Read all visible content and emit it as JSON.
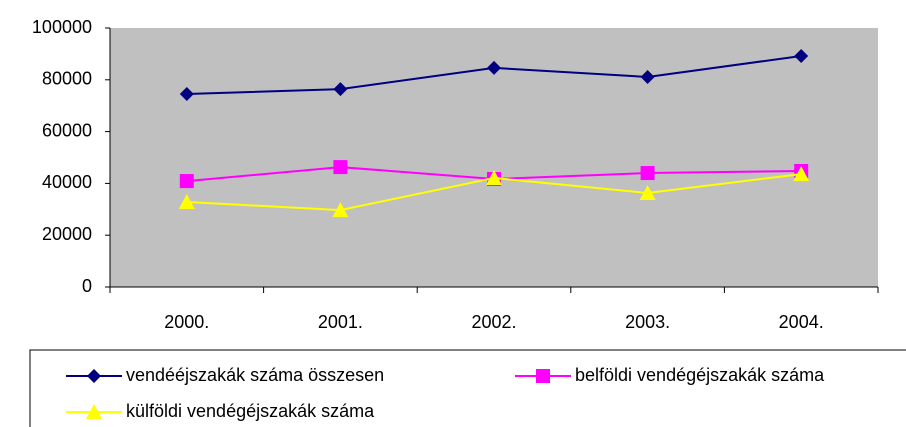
{
  "chart_data": {
    "type": "line",
    "categories": [
      "2000.",
      "2001.",
      "2002.",
      "2003.",
      "2004."
    ],
    "series": [
      {
        "name": "vendééjszakák száma összesen",
        "color": "#000080",
        "marker": "diamond",
        "values": [
          74500,
          76400,
          84600,
          81100,
          89200
        ]
      },
      {
        "name": "belföldi vendégéjszakák száma",
        "color": "#ff00ff",
        "marker": "square",
        "values": [
          40900,
          46300,
          41700,
          44000,
          44800
        ]
      },
      {
        "name": "külföldi vendégéjszakák száma",
        "color": "#ffff00",
        "marker": "triangle",
        "values": [
          32800,
          29700,
          42100,
          36300,
          43600
        ]
      }
    ],
    "ylim": [
      0,
      100000
    ],
    "yticks": [
      0,
      20000,
      40000,
      60000,
      80000,
      100000
    ],
    "plot_background": "#c0c0c0",
    "legend": "bottom"
  }
}
